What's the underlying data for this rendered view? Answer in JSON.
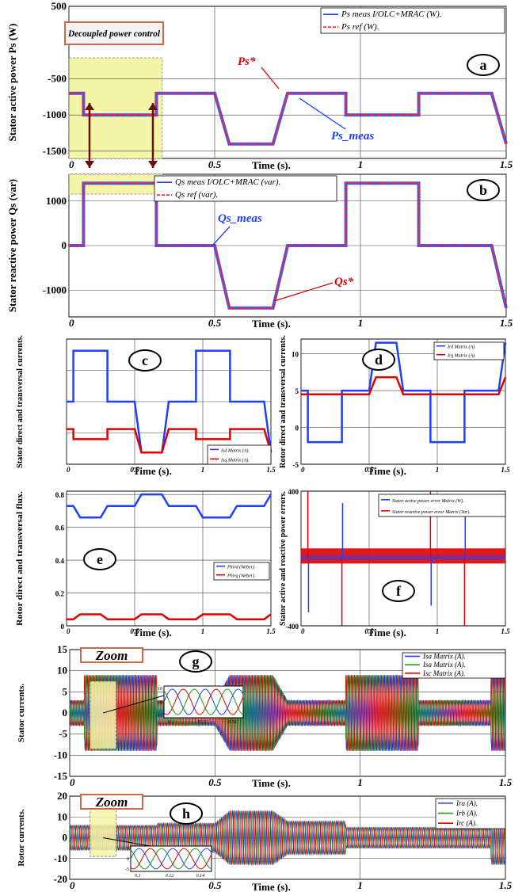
{
  "figure": {
    "time_label": "Time (s).",
    "zoom_label": "Zoom",
    "colors": {
      "blue": "#1f3fff",
      "red": "#e00000",
      "green": "#1a9a1a",
      "dashed_red": "#ff2020",
      "highlight": "#f5f5a8",
      "grid": "#000000"
    }
  },
  "chart_data": [
    {
      "id": "a",
      "type": "line",
      "panel_letter": "a",
      "ylabel": "Stator active power Ps (W)",
      "xlabel": "Time (s).",
      "xlim": [
        0,
        1.5
      ],
      "ylim": [
        -1600,
        500
      ],
      "xticks": [
        0,
        0.5,
        1,
        1.5
      ],
      "xtick_labels": [
        "0",
        "0.5",
        "1",
        "1.5"
      ],
      "yticks": [
        500,
        -500,
        -1000,
        -1500
      ],
      "ytick_labels": [
        "500",
        "-500",
        "-1000",
        "-1500"
      ],
      "legend": [
        "Ps meas I/OLC+MRAC (W).",
        "Ps ref (W)."
      ],
      "annotations": [
        "Decoupled power control",
        "Ps*",
        "Ps_meas"
      ],
      "series": [
        {
          "name": "Ps meas I/OLC+MRAC (W).",
          "x": [
            0,
            0.05,
            0.05,
            0.3,
            0.3,
            0.5,
            0.55,
            0.7,
            0.75,
            0.95,
            0.95,
            1.2,
            1.2,
            1.45,
            1.5
          ],
          "y": [
            -700,
            -700,
            -1000,
            -1000,
            -700,
            -700,
            -1400,
            -1400,
            -700,
            -700,
            -1000,
            -1000,
            -700,
            -700,
            -1400
          ]
        },
        {
          "name": "Ps ref (W).",
          "x": [
            0,
            0.05,
            0.05,
            0.3,
            0.3,
            0.5,
            0.55,
            0.7,
            0.75,
            0.95,
            0.95,
            1.2,
            1.2,
            1.45,
            1.5
          ],
          "y": [
            -700,
            -700,
            -1000,
            -1000,
            -700,
            -700,
            -1400,
            -1400,
            -700,
            -700,
            -1000,
            -1000,
            -700,
            -700,
            -1400
          ]
        }
      ]
    },
    {
      "id": "b",
      "type": "line",
      "panel_letter": "b",
      "ylabel": "Stator reactive power Qs (var)",
      "xlabel": "Time (s).",
      "xlim": [
        0,
        1.5
      ],
      "ylim": [
        -1600,
        1600
      ],
      "xticks": [
        0,
        0.5,
        1,
        1.5
      ],
      "xtick_labels": [
        "0",
        "0.5",
        "1",
        "1.5"
      ],
      "yticks": [
        1000,
        0,
        -1000
      ],
      "ytick_labels": [
        "1000",
        "0",
        "-1000"
      ],
      "legend": [
        "Qs meas I/OLC+MRAC (var).",
        "Qs ref (var)."
      ],
      "annotations": [
        "Qs_meas",
        "Qs*"
      ],
      "series": [
        {
          "name": "Qs meas I/OLC+MRAC (var).",
          "x": [
            0,
            0.05,
            0.05,
            0.3,
            0.3,
            0.5,
            0.55,
            0.7,
            0.75,
            0.95,
            0.95,
            1.2,
            1.2,
            1.45,
            1.5
          ],
          "y": [
            0,
            0,
            1400,
            1400,
            0,
            0,
            -1400,
            -1400,
            0,
            0,
            1400,
            1400,
            0,
            0,
            -1400
          ]
        },
        {
          "name": "Qs ref (var).",
          "x": [
            0,
            0.05,
            0.05,
            0.3,
            0.3,
            0.5,
            0.55,
            0.7,
            0.75,
            0.95,
            0.95,
            1.2,
            1.2,
            1.45,
            1.5
          ],
          "y": [
            0,
            0,
            1400,
            1400,
            0,
            0,
            -1400,
            -1400,
            0,
            0,
            1400,
            1400,
            0,
            0,
            -1400
          ]
        }
      ]
    },
    {
      "id": "c",
      "type": "line",
      "panel_letter": "c",
      "ylabel": "Stator direct and transversal currents.",
      "xlabel": "Time (s).",
      "xlim": [
        0,
        1.5
      ],
      "ylim": [
        -8,
        8
      ],
      "xticks": [
        0,
        0.5,
        1,
        1.5
      ],
      "xtick_labels": [
        "0",
        "0.5",
        "1",
        "1.5"
      ],
      "yticks": [],
      "ytick_labels": [],
      "legend": [
        "Isd Matrix (A).",
        "Isq Matrix (A)."
      ],
      "series": [
        {
          "name": "Isd Matrix (A).",
          "x": [
            0,
            0.05,
            0.05,
            0.3,
            0.3,
            0.5,
            0.55,
            0.7,
            0.75,
            0.95,
            0.95,
            1.2,
            1.2,
            1.45,
            1.5
          ],
          "y": [
            0,
            0,
            6.5,
            6.5,
            0,
            0,
            -6.5,
            -6.5,
            0,
            0,
            6.5,
            6.5,
            0,
            0,
            -6.5
          ]
        },
        {
          "name": "Isq Matrix (A).",
          "x": [
            0,
            0.05,
            0.05,
            0.3,
            0.3,
            0.5,
            0.55,
            0.7,
            0.75,
            0.95,
            0.95,
            1.2,
            1.2,
            1.45,
            1.5
          ],
          "y": [
            -3.5,
            -3.5,
            -4.8,
            -4.8,
            -3.5,
            -3.5,
            -6.5,
            -6.5,
            -3.5,
            -3.5,
            -4.8,
            -4.8,
            -3.5,
            -3.5,
            -6.5
          ]
        }
      ]
    },
    {
      "id": "d",
      "type": "line",
      "panel_letter": "d",
      "ylabel": "Rotor direct and transversal currents.",
      "xlabel": "Time (s).",
      "xlim": [
        0,
        1.5
      ],
      "ylim": [
        -5,
        12
      ],
      "xticks": [
        0,
        0.5,
        1,
        1.5
      ],
      "xtick_labels": [
        "0",
        "0.5",
        "1",
        "1.5"
      ],
      "yticks": [
        10,
        5,
        0,
        -5
      ],
      "ytick_labels": [
        "10",
        "5",
        "0",
        "-5"
      ],
      "legend": [
        "Ird Matrix (A).",
        "Irq Matrix (A)."
      ],
      "series": [
        {
          "name": "Ird Matrix (A).",
          "x": [
            0,
            0.05,
            0.05,
            0.3,
            0.3,
            0.5,
            0.55,
            0.7,
            0.75,
            0.95,
            0.95,
            1.2,
            1.2,
            1.45,
            1.5
          ],
          "y": [
            5,
            5,
            -2,
            -2,
            5,
            5,
            11.5,
            11.5,
            5,
            5,
            -2,
            -2,
            5,
            5,
            11.5
          ]
        },
        {
          "name": "Irq Matrix (A).",
          "x": [
            0,
            0.05,
            0.05,
            0.3,
            0.3,
            0.5,
            0.55,
            0.7,
            0.75,
            0.95,
            0.95,
            1.2,
            1.2,
            1.45,
            1.5
          ],
          "y": [
            4.5,
            4.5,
            4.5,
            4.5,
            4.5,
            4.5,
            6.8,
            6.8,
            4.5,
            4.5,
            4.5,
            4.5,
            4.5,
            4.5,
            6.8
          ]
        }
      ]
    },
    {
      "id": "e",
      "type": "line",
      "panel_letter": "e",
      "ylabel": "Rotor direct and transversal flux.",
      "xlabel": "Time (s).",
      "xlim": [
        0,
        1.5
      ],
      "ylim": [
        0,
        0.82
      ],
      "xticks": [
        0,
        0.5,
        1,
        1.5
      ],
      "xtick_labels": [
        "0",
        "0.5",
        "1",
        "1.5"
      ],
      "yticks": [
        0.8,
        0.6,
        0.4,
        0.2,
        0
      ],
      "ytick_labels": [
        "0.8",
        "0.6",
        "0.4",
        "0.2",
        "0"
      ],
      "legend": [
        "Phird (Weber).",
        "Phirq (Weber)."
      ],
      "series": [
        {
          "name": "Phird (Weber).",
          "x": [
            0,
            0.05,
            0.1,
            0.25,
            0.3,
            0.5,
            0.55,
            0.7,
            0.75,
            0.95,
            1.0,
            1.2,
            1.25,
            1.45,
            1.5
          ],
          "y": [
            0.73,
            0.73,
            0.66,
            0.66,
            0.73,
            0.73,
            0.8,
            0.8,
            0.73,
            0.73,
            0.66,
            0.66,
            0.73,
            0.73,
            0.8
          ]
        },
        {
          "name": "Phirq (Weber).",
          "x": [
            0,
            0.05,
            0.1,
            0.25,
            0.3,
            0.5,
            0.55,
            0.7,
            0.75,
            0.95,
            1.0,
            1.2,
            1.25,
            1.45,
            1.5
          ],
          "y": [
            0.04,
            0.04,
            0.07,
            0.07,
            0.04,
            0.04,
            0.07,
            0.07,
            0.04,
            0.04,
            0.07,
            0.07,
            0.04,
            0.04,
            0.07
          ]
        }
      ]
    },
    {
      "id": "f",
      "type": "line",
      "panel_letter": "f",
      "ylabel": "Stator active and reactive power errors.",
      "xlabel": "Time (s).",
      "xlim": [
        0,
        1.5
      ],
      "ylim": [
        -400,
        400
      ],
      "xticks": [
        0,
        0.5,
        1,
        1.5
      ],
      "xtick_labels": [
        "0",
        "0.5",
        "1",
        "1.5"
      ],
      "yticks": [
        400,
        -400
      ],
      "ytick_labels": [
        "400",
        "-400"
      ],
      "legend": [
        "Stator active power error Matrix (W).",
        "Stator reactive power error Matrix (Var)."
      ],
      "series": [
        {
          "name": "Stator active power error Matrix (W).",
          "band": [
            -20,
            50
          ],
          "spikes": [
            [
              0.05,
              -320
            ],
            [
              0.3,
              330
            ],
            [
              0.95,
              -280
            ],
            [
              1.2,
              300
            ]
          ]
        },
        {
          "name": "Stator reactive power error Matrix (Var).",
          "band": [
            -30,
            60
          ],
          "spikes": [
            [
              0.05,
              400
            ],
            [
              0.3,
              -400
            ],
            [
              0.95,
              400
            ],
            [
              1.2,
              -400
            ]
          ]
        }
      ]
    },
    {
      "id": "g",
      "type": "line",
      "panel_letter": "g",
      "ylabel": "Stator currents.",
      "xlabel": "Time (s).",
      "xlim": [
        0,
        1.5
      ],
      "ylim": [
        -15,
        15
      ],
      "xticks": [
        0,
        0.5,
        1,
        1.5
      ],
      "xtick_labels": [
        "0",
        "0.5",
        "1",
        "1.5"
      ],
      "yticks": [
        15,
        10,
        5,
        0,
        -5,
        -10,
        -15
      ],
      "ytick_labels": [
        "15",
        "10",
        "5",
        "0",
        "-5",
        "-10",
        "-15"
      ],
      "legend": [
        "Isa Matrix (A).",
        "Isa Matrix (A).",
        "Isc Matrix (A)."
      ],
      "zoom_inset": {
        "xlim": [
          0.1,
          0.15
        ],
        "xtick_labels": [
          "0.1",
          "0.12",
          "0.14"
        ],
        "ytick_labels": [
          "10",
          "0",
          "-10"
        ]
      },
      "series": [
        {
          "name": "Isa Matrix (A).",
          "segments": [
            [
              0,
              0.05,
              3
            ],
            [
              0.05,
              0.3,
              9
            ],
            [
              0.3,
              0.5,
              3
            ],
            [
              0.55,
              0.7,
              9
            ],
            [
              0.75,
              0.95,
              3
            ],
            [
              0.95,
              1.2,
              9
            ],
            [
              1.2,
              1.45,
              3
            ],
            [
              1.45,
              1.5,
              9
            ]
          ]
        }
      ]
    },
    {
      "id": "h",
      "type": "line",
      "panel_letter": "h",
      "ylabel": "Rotor currents.",
      "xlabel": "Time (s).",
      "xlim": [
        0,
        1.5
      ],
      "ylim": [
        -20,
        20
      ],
      "xticks": [
        0,
        0.5,
        1,
        1.5
      ],
      "xtick_labels": [
        "0",
        "0.5",
        "1",
        "1.5"
      ],
      "yticks": [
        20,
        10,
        0,
        -10,
        -20
      ],
      "ytick_labels": [
        "20",
        "10",
        "0",
        "-10",
        "-20"
      ],
      "legend": [
        "Ira (A).",
        "Irb (A).",
        "Irc (A)."
      ],
      "zoom_inset": {
        "xlim": [
          0.1,
          0.15
        ],
        "xtick_labels": [
          "0.1",
          "0.12",
          "0.14"
        ],
        "ytick_labels": [
          "5",
          "0",
          "-5"
        ]
      },
      "series": [
        {
          "name": "Ira (A).",
          "segments": [
            [
              0,
              0.05,
              6
            ],
            [
              0.05,
              0.3,
              6
            ],
            [
              0.3,
              0.5,
              7
            ],
            [
              0.55,
              0.7,
              13
            ],
            [
              0.75,
              0.95,
              8
            ],
            [
              0.95,
              1.2,
              5
            ],
            [
              1.2,
              1.45,
              5
            ],
            [
              1.45,
              1.5,
              13
            ]
          ]
        }
      ]
    }
  ]
}
